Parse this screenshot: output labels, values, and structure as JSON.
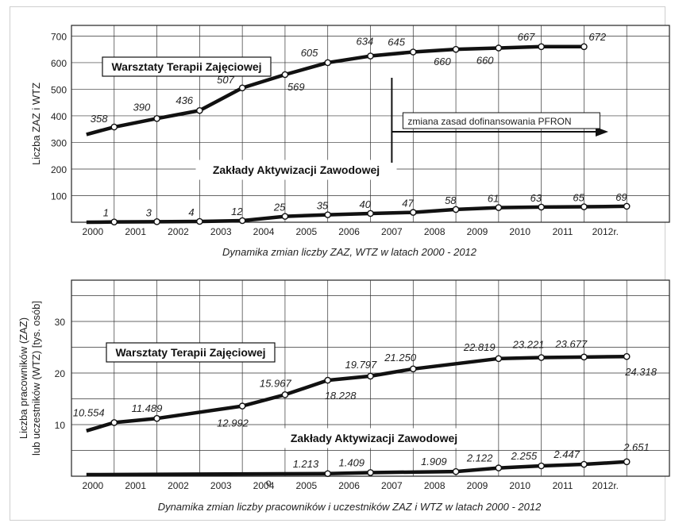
{
  "chart_data": [
    {
      "type": "line",
      "caption": "Dynamika zmian liczby ZAZ, WTZ w latach 2000 - 2012",
      "ylabel": "Liczba ZAZ i WTZ",
      "x_tick_labels": [
        "2000",
        "2001",
        "2002",
        "2003",
        "2004",
        "2005",
        "2006",
        "2007",
        "2008",
        "2009",
        "2010",
        "2011",
        "2012r."
      ],
      "y_ticks": [
        100,
        200,
        300,
        400,
        500,
        600,
        700
      ],
      "ylim": [
        0,
        740
      ],
      "grid": true,
      "series": [
        {
          "name": "Warsztaty Terapii Zajęciowej",
          "line_start": 330,
          "values": [
            358,
            390,
            436,
            507,
            569,
            605,
            634,
            645,
            660,
            660,
            667,
            672
          ],
          "labels": [
            "358",
            "390",
            "436",
            "507",
            "569",
            "605",
            "634",
            "645",
            "660",
            "660",
            "667",
            "672"
          ],
          "plotted": [
            358,
            390,
            420,
            505,
            555,
            600,
            625,
            640,
            650,
            655,
            660,
            660
          ]
        },
        {
          "name": "Zakłady Aktywizacji Zawodowej",
          "line_start": 0,
          "values": [
            1,
            3,
            4,
            12,
            25,
            35,
            40,
            47,
            58,
            61,
            63,
            65,
            69
          ],
          "labels": [
            "1",
            "3",
            "4",
            "12",
            "25",
            "35",
            "40",
            "47",
            "58",
            "61",
            "63",
            "65",
            "69"
          ],
          "plotted": [
            1,
            2,
            3,
            6,
            22,
            28,
            33,
            37,
            48,
            55,
            57,
            58,
            60
          ]
        }
      ],
      "annotation": "zmiana zasad dofinansowania PFRON"
    },
    {
      "type": "line",
      "caption": "Dynamika zmian liczby pracowników i uczestników ZAZ i WTZ w latach 2000 - 2012",
      "ylabel_lines": [
        "Liczba pracowników (ZAZ)",
        "lub uczestników (WTZ) [tys. osób]"
      ],
      "x_tick_labels": [
        "2000",
        "2001",
        "2002",
        "2003",
        "2004",
        "2005",
        "2006",
        "2007",
        "2008",
        "2009",
        "2010",
        "2011",
        "2012r."
      ],
      "y_ticks": [
        10,
        20,
        30
      ],
      "ylim": [
        0,
        38
      ],
      "grid": true,
      "series": [
        {
          "name": "Warsztaty Terapii Zajęciowej",
          "line_start": 8.8,
          "values": [
            10.554,
            11.489,
            12.992,
            15.967,
            18.228,
            19.797,
            21.25,
            22.819,
            23.221,
            23.677,
            24.318
          ],
          "labels": [
            "10.554",
            "11.489",
            "12.992",
            "15.967",
            "18.228",
            "19.797",
            "21.250",
            "22.819",
            "23.221",
            "23.677",
            "24.318"
          ],
          "plotted": [
            10.4,
            11.2,
            13.6,
            15.8,
            18.6,
            19.4,
            20.8,
            22.8,
            23.0,
            23.1,
            23.2
          ]
        },
        {
          "name": "Zakłady Aktywizacji Zawodowej",
          "values": [
            1.213,
            1.409,
            1.909,
            2.122,
            2.255,
            2.447,
            2.651
          ],
          "labels": [
            "1.213",
            "1.409",
            "1.909",
            "2.122",
            "2.255",
            "2.447",
            "2.651"
          ],
          "plotted": [
            0.5,
            0.7,
            0.9,
            1.6,
            2.0,
            2.3,
            2.8
          ]
        }
      ],
      "stray_mark": "o"
    }
  ]
}
